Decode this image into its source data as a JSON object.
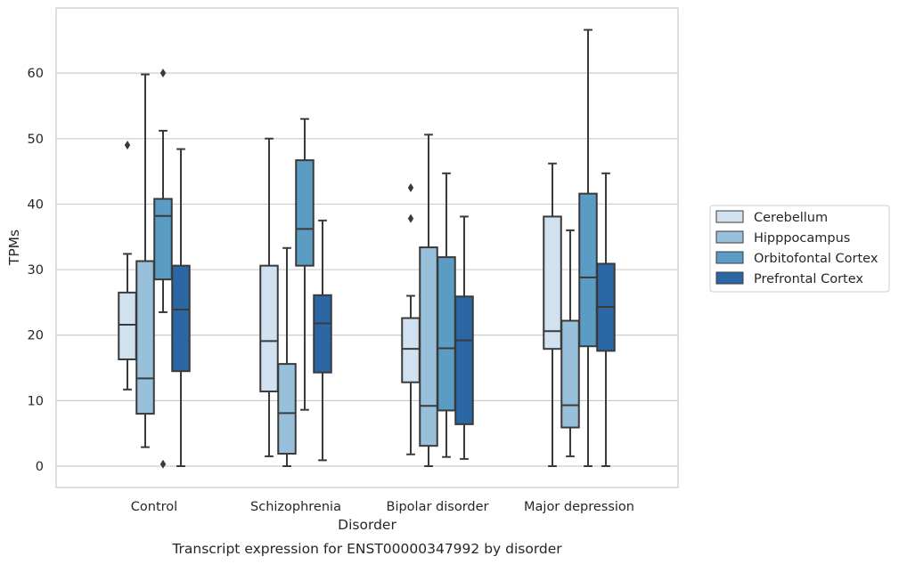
{
  "chart_data": {
    "type": "box",
    "title": "Transcript expression for ENST00000347992 by disorder",
    "xlabel": "Disorder",
    "ylabel": "TPMs",
    "ylim": [
      -3.2,
      69.8
    ],
    "yticks": [
      0,
      10,
      20,
      30,
      40,
      50,
      60
    ],
    "grid": "horizontal",
    "legend_position": "right",
    "categories": [
      "Control",
      "Schizophrenia",
      "Bipolar disorder",
      "Major depression"
    ],
    "series": [
      {
        "name": "Cerebellum",
        "color": "#d1e1f0",
        "boxes": [
          {
            "whislo": 11.7,
            "q1": 16.3,
            "med": 21.6,
            "q3": 26.5,
            "whishi": 32.4,
            "fliers": [
              49
            ]
          },
          {
            "whislo": 1.5,
            "q1": 11.4,
            "med": 19.1,
            "q3": 30.6,
            "whishi": 50.0,
            "fliers": []
          },
          {
            "whislo": 1.8,
            "q1": 12.8,
            "med": 17.9,
            "q3": 22.6,
            "whishi": 26.0,
            "fliers": [
              37.8,
              42.5
            ]
          },
          {
            "whislo": 0,
            "q1": 17.9,
            "med": 20.6,
            "q3": 38.1,
            "whishi": 46.2,
            "fliers": []
          }
        ]
      },
      {
        "name": "Hipppocampus",
        "color": "#99c0da",
        "boxes": [
          {
            "whislo": 2.9,
            "q1": 8.0,
            "med": 13.4,
            "q3": 31.3,
            "whishi": 59.8,
            "fliers": []
          },
          {
            "whislo": 0,
            "q1": 1.9,
            "med": 8.1,
            "q3": 15.6,
            "whishi": 33.3,
            "fliers": []
          },
          {
            "whislo": 0,
            "q1": 3.1,
            "med": 9.2,
            "q3": 33.4,
            "whishi": 50.6,
            "fliers": []
          },
          {
            "whislo": 1.5,
            "q1": 5.9,
            "med": 9.3,
            "q3": 22.2,
            "whishi": 36.0,
            "fliers": []
          }
        ]
      },
      {
        "name": "Orbitofontal Cortex",
        "color": "#5b9cc5",
        "boxes": [
          {
            "whislo": 23.5,
            "q1": 28.5,
            "med": 38.2,
            "q3": 40.8,
            "whishi": 51.2,
            "fliers": [
              0.3,
              60.0
            ]
          },
          {
            "whislo": 8.6,
            "q1": 30.6,
            "med": 36.2,
            "q3": 46.7,
            "whishi": 53.0,
            "fliers": []
          },
          {
            "whislo": 1.4,
            "q1": 8.5,
            "med": 18.0,
            "q3": 31.9,
            "whishi": 44.7,
            "fliers": []
          },
          {
            "whislo": 0,
            "q1": 18.3,
            "med": 28.8,
            "q3": 41.6,
            "whishi": 66.6,
            "fliers": []
          }
        ]
      },
      {
        "name": "Prefrontal Cortex",
        "color": "#2b67a5",
        "boxes": [
          {
            "whislo": 0,
            "q1": 14.5,
            "med": 23.9,
            "q3": 30.6,
            "whishi": 48.4,
            "fliers": []
          },
          {
            "whislo": 0.9,
            "q1": 14.3,
            "med": 21.8,
            "q3": 26.1,
            "whishi": 37.5,
            "fliers": []
          },
          {
            "whislo": 1.1,
            "q1": 6.4,
            "med": 19.2,
            "q3": 25.9,
            "whishi": 38.1,
            "fliers": []
          },
          {
            "whislo": 0,
            "q1": 17.6,
            "med": 24.3,
            "q3": 30.9,
            "whishi": 44.7,
            "fliers": []
          }
        ]
      }
    ]
  }
}
